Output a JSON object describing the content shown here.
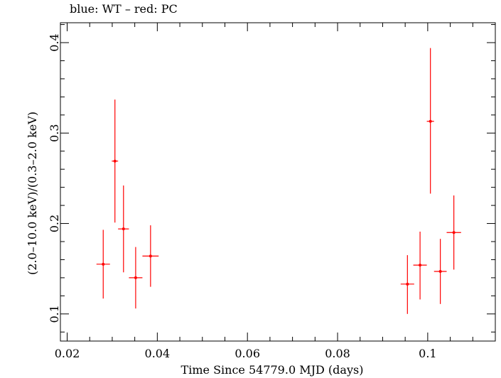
{
  "chart_data": {
    "type": "scatter",
    "title": "blue: WT – red: PC",
    "xlabel": "Time Since 54779.0 MJD (days)",
    "ylabel": "(2.0–10.0 keV)/(0.3–2.0 keV)",
    "xlim": [
      0.0185,
      0.115
    ],
    "ylim": [
      0.07,
      0.422
    ],
    "x_ticks": [
      {
        "value": 0.02,
        "label": "0.02"
      },
      {
        "value": 0.04,
        "label": "0.04"
      },
      {
        "value": 0.06,
        "label": "0.06"
      },
      {
        "value": 0.08,
        "label": "0.08"
      },
      {
        "value": 0.1,
        "label": "0.1"
      }
    ],
    "y_ticks": [
      {
        "value": 0.1,
        "label": "0.1"
      },
      {
        "value": 0.2,
        "label": "0.2"
      },
      {
        "value": 0.3,
        "label": "0.3"
      },
      {
        "value": 0.4,
        "label": "0.4"
      }
    ],
    "grid": false,
    "series": [
      {
        "color": "#ff0000",
        "points": [
          {
            "x": 0.028,
            "y": 0.155,
            "x_err": 0.0015,
            "y_low": 0.117,
            "y_high": 0.193
          },
          {
            "x": 0.0306,
            "y": 0.269,
            "x_err": 0.0007,
            "y_low": 0.201,
            "y_high": 0.337
          },
          {
            "x": 0.0325,
            "y": 0.194,
            "x_err": 0.0012,
            "y_low": 0.146,
            "y_high": 0.242
          },
          {
            "x": 0.0352,
            "y": 0.14,
            "x_err": 0.0015,
            "y_low": 0.106,
            "y_high": 0.174
          },
          {
            "x": 0.0385,
            "y": 0.164,
            "x_err": 0.0018,
            "y_low": 0.13,
            "y_high": 0.198
          },
          {
            "x": 0.0955,
            "y": 0.133,
            "x_err": 0.0015,
            "y_low": 0.1,
            "y_high": 0.165
          },
          {
            "x": 0.0983,
            "y": 0.154,
            "x_err": 0.0015,
            "y_low": 0.116,
            "y_high": 0.191
          },
          {
            "x": 0.1006,
            "y": 0.313,
            "x_err": 0.0008,
            "y_low": 0.233,
            "y_high": 0.394
          },
          {
            "x": 0.1028,
            "y": 0.147,
            "x_err": 0.0014,
            "y_low": 0.111,
            "y_high": 0.183
          },
          {
            "x": 0.1058,
            "y": 0.19,
            "x_err": 0.0016,
            "y_low": 0.149,
            "y_high": 0.231
          }
        ]
      }
    ]
  }
}
